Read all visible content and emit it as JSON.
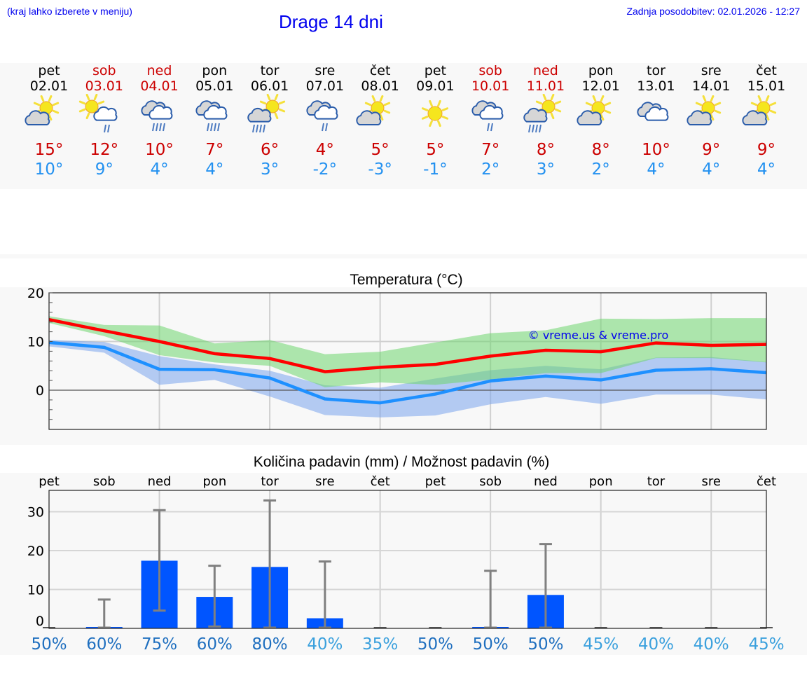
{
  "header": {
    "hint": "(kraj lahko izberete v meniju)",
    "title": "Drage 14 dni",
    "updated": "Zadnja posodobitev: 02.01.2026 - 12:27"
  },
  "days": [
    {
      "name": "pet",
      "date": "02.01",
      "weekend": false,
      "icon": "partly-cloudy-icon",
      "tmax": "15°",
      "tmin": "10°"
    },
    {
      "name": "sob",
      "date": "03.01",
      "weekend": true,
      "icon": "sun-cloud-light-rain-icon",
      "tmax": "12°",
      "tmin": "9°"
    },
    {
      "name": "ned",
      "date": "04.01",
      "weekend": true,
      "icon": "cloudy-rain-icon",
      "tmax": "10°",
      "tmin": "4°"
    },
    {
      "name": "pon",
      "date": "05.01",
      "weekend": false,
      "icon": "cloudy-rain-icon",
      "tmax": "7°",
      "tmin": "4°"
    },
    {
      "name": "tor",
      "date": "06.01",
      "weekend": false,
      "icon": "sun-cloud-rain-icon",
      "tmax": "6°",
      "tmin": "3°"
    },
    {
      "name": "sre",
      "date": "07.01",
      "weekend": false,
      "icon": "cloudy-light-rain-icon",
      "tmax": "4°",
      "tmin": "-2°"
    },
    {
      "name": "čet",
      "date": "08.01",
      "weekend": false,
      "icon": "partly-cloudy-icon",
      "tmax": "5°",
      "tmin": "-3°"
    },
    {
      "name": "pet",
      "date": "09.01",
      "weekend": false,
      "icon": "sun-icon",
      "tmax": "5°",
      "tmin": "-1°"
    },
    {
      "name": "sob",
      "date": "10.01",
      "weekend": true,
      "icon": "cloudy-light-rain-icon",
      "tmax": "7°",
      "tmin": "2°"
    },
    {
      "name": "ned",
      "date": "11.01",
      "weekend": true,
      "icon": "sun-cloud-rain-icon",
      "tmax": "8°",
      "tmin": "3°"
    },
    {
      "name": "pon",
      "date": "12.01",
      "weekend": false,
      "icon": "partly-cloudy-icon",
      "tmax": "8°",
      "tmin": "2°"
    },
    {
      "name": "tor",
      "date": "13.01",
      "weekend": false,
      "icon": "cloudy-icon",
      "tmax": "10°",
      "tmin": "4°"
    },
    {
      "name": "sre",
      "date": "14.01",
      "weekend": false,
      "icon": "partly-cloudy-icon",
      "tmax": "9°",
      "tmin": "4°"
    },
    {
      "name": "čet",
      "date": "15.01",
      "weekend": false,
      "icon": "partly-cloudy-icon",
      "tmax": "9°",
      "tmin": "4°"
    }
  ],
  "colors": {
    "link": "#0000ee",
    "tmax_text": "#cc0000",
    "tmin_text": "#2391f0",
    "tmax_line": "#ff0000",
    "tmin_line": "#1e90ff",
    "tmax_band": "#a8e6a8",
    "tmin_band": "#a8c4f0",
    "overlap_band": "#7cc8a8",
    "precip_bar": "#0055ff",
    "error_bar": "#808080",
    "prob_high": "#1f6fbf",
    "prob_low": "#3aa0dd"
  },
  "chart_data": [
    {
      "type": "line",
      "title": "Temperatura (°C)",
      "watermark": "© vreme.us & vreme.pro",
      "x": [
        "02.01",
        "03.01",
        "04.01",
        "05.01",
        "06.01",
        "07.01",
        "08.01",
        "09.01",
        "10.01",
        "11.01",
        "12.01",
        "13.01",
        "14.01",
        "15.01"
      ],
      "ylim": [
        -8,
        20
      ],
      "yticks": [
        0,
        10,
        20
      ],
      "grid": true,
      "series": [
        {
          "name": "max",
          "values": [
            14.5,
            12.2,
            10.0,
            7.5,
            6.5,
            3.8,
            4.7,
            5.3,
            7.0,
            8.2,
            7.9,
            9.7,
            9.2,
            9.4
          ]
        },
        {
          "name": "max_range_high",
          "values": [
            15.2,
            13.4,
            13.3,
            9.6,
            10.3,
            7.4,
            7.9,
            9.8,
            11.7,
            12.3,
            14.7,
            14.6,
            14.8,
            14.8
          ]
        },
        {
          "name": "max_range_low",
          "values": [
            13.8,
            11.1,
            7.2,
            5.7,
            5.0,
            0.6,
            1.6,
            1.1,
            2.2,
            3.5,
            3.5,
            6.6,
            6.6,
            5.7
          ]
        },
        {
          "name": "min",
          "values": [
            9.8,
            8.8,
            4.3,
            4.2,
            2.5,
            -1.8,
            -2.6,
            -0.8,
            1.9,
            2.9,
            2.1,
            4.1,
            4.4,
            3.6
          ]
        },
        {
          "name": "min_range_high",
          "values": [
            10.3,
            9.9,
            7.0,
            5.3,
            4.0,
            1.0,
            0.5,
            2.4,
            4.1,
            5.0,
            4.3,
            6.7,
            6.8,
            5.8
          ]
        },
        {
          "name": "min_range_low",
          "values": [
            9.0,
            7.7,
            1.1,
            2.1,
            -1.3,
            -5.1,
            -5.6,
            -5.2,
            -2.9,
            -1.4,
            -2.8,
            -0.9,
            -0.9,
            -1.9
          ]
        }
      ]
    },
    {
      "type": "bar",
      "title": "Količina padavin (mm) / Možnost padavin (%)",
      "categories": [
        "pet",
        "sob",
        "ned",
        "pon",
        "tor",
        "sre",
        "čet",
        "pet",
        "sob",
        "ned",
        "pon",
        "tor",
        "sre",
        "čet"
      ],
      "ylim": [
        -2,
        35
      ],
      "yticks": [
        0,
        10,
        20,
        30
      ],
      "grid": true,
      "series": [
        {
          "name": "precip_mm",
          "values": [
            0,
            0.3,
            17.4,
            8.1,
            15.8,
            2.6,
            0,
            0,
            0.3,
            8.6,
            0,
            0,
            0,
            0
          ]
        },
        {
          "name": "precip_high",
          "values": [
            0,
            7.4,
            30.4,
            16.1,
            32.9,
            17.2,
            0,
            0,
            14.8,
            21.7,
            0,
            0,
            0,
            0
          ]
        },
        {
          "name": "precip_low",
          "values": [
            0,
            0,
            4.4,
            0.3,
            0,
            0,
            0,
            0,
            0,
            0,
            0,
            0,
            0,
            0
          ]
        },
        {
          "name": "probability_pct",
          "values": [
            50,
            60,
            75,
            60,
            80,
            40,
            35,
            50,
            50,
            50,
            45,
            40,
            40,
            45
          ]
        }
      ],
      "probability_labels": [
        "50%",
        "60%",
        "75%",
        "60%",
        "80%",
        "40%",
        "35%",
        "50%",
        "50%",
        "50%",
        "45%",
        "40%",
        "40%",
        "45%"
      ]
    }
  ]
}
